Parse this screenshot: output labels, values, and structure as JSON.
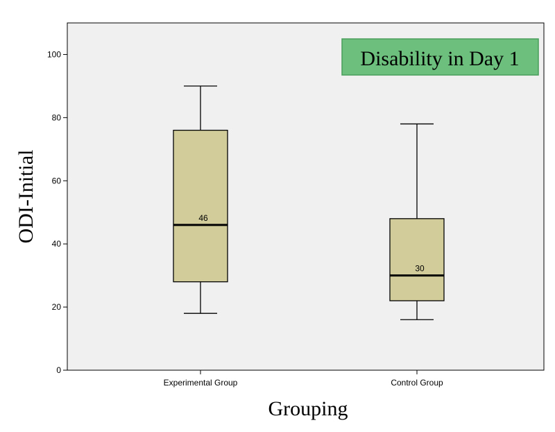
{
  "chart_data": {
    "type": "boxplot",
    "categories": [
      "Experimental Group",
      "Control Group"
    ],
    "boxes": [
      {
        "category": "Experimental Group",
        "min": 18,
        "q1": 28,
        "median": 46,
        "q3": 76,
        "max": 90,
        "median_label": "46"
      },
      {
        "category": "Control Group",
        "min": 16,
        "q1": 22,
        "median": 30,
        "q3": 48,
        "max": 78,
        "median_label": "30"
      }
    ],
    "ylim": [
      0,
      110
    ],
    "yticks": [
      0,
      20,
      40,
      60,
      80,
      100
    ],
    "xlabel": "Grouping",
    "ylabel": "ODI-Initial",
    "annotation": "Disability in Day 1",
    "grid": false,
    "colors": {
      "plot_background": "#f0f0f0",
      "box_fill": "#d2cc9a",
      "annotation_fill": "#6cbf7c",
      "annotation_border": "#4a9e5c"
    }
  }
}
